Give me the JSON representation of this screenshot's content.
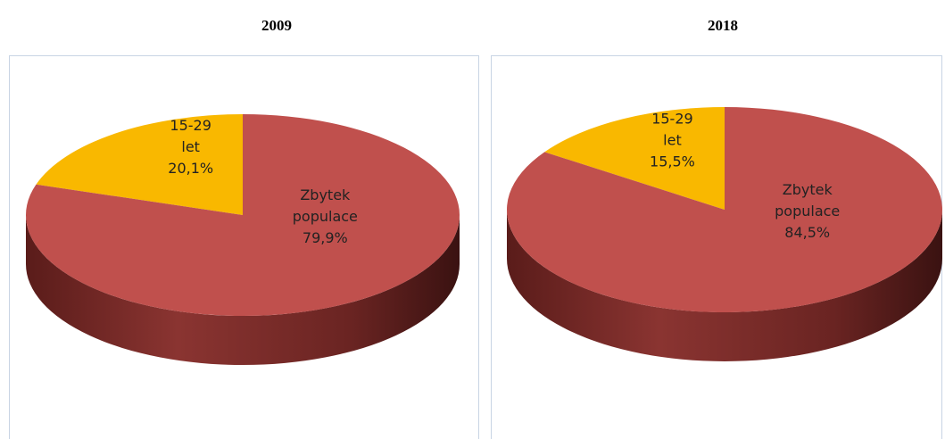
{
  "chart_data": [
    {
      "type": "pie",
      "title": "2009",
      "categories": [
        "15-29 let",
        "Zbytek populace"
      ],
      "values": [
        20.1,
        79.9
      ],
      "value_labels": [
        "20,1%",
        "79,9%"
      ],
      "colors": [
        "#f9b800",
        "#c0504d"
      ]
    },
    {
      "type": "pie",
      "title": "2018",
      "categories": [
        "15-29 let",
        "Zbytek populace"
      ],
      "values": [
        15.5,
        84.5
      ],
      "value_labels": [
        "15,5%",
        "84,5%"
      ],
      "colors": [
        "#f9b800",
        "#c0504d"
      ]
    }
  ]
}
